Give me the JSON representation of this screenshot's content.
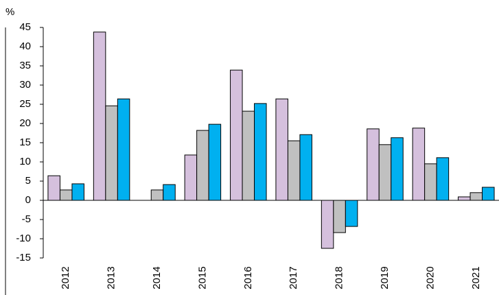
{
  "chart_data": {
    "type": "bar",
    "y_label": "%",
    "categories": [
      "2012",
      "2013",
      "2014",
      "2015",
      "2016",
      "2017",
      "2018",
      "2019",
      "2020",
      "2021"
    ],
    "series": [
      {
        "color": "#d5c0dd",
        "values": [
          6.4,
          43.8,
          0,
          11.8,
          33.9,
          26.4,
          -12.5,
          18.6,
          18.8,
          0.9
        ]
      },
      {
        "color": "#c0c0c0",
        "values": [
          2.7,
          24.6,
          2.7,
          18.2,
          23.2,
          15.5,
          -8.4,
          14.5,
          9.5,
          2.0
        ]
      },
      {
        "color": "#00b0f0",
        "values": [
          4.3,
          26.4,
          4.1,
          19.8,
          25.2,
          17.1,
          -6.8,
          16.3,
          11.1,
          3.4
        ]
      }
    ],
    "ylim": [
      -15,
      45
    ],
    "yticks": [
      -15,
      -10,
      -5,
      0,
      5,
      10,
      15,
      20,
      25,
      30,
      35,
      40,
      45
    ],
    "grid": false
  }
}
